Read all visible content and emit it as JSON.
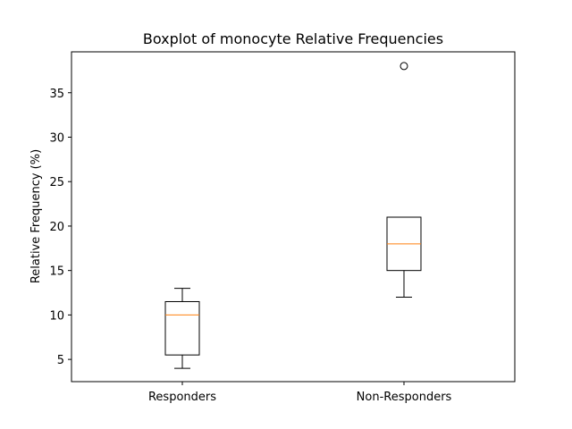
{
  "chart_data": {
    "type": "boxplot",
    "title": "Boxplot of monocyte Relative Frequencies",
    "xlabel": "",
    "ylabel": "Relative Frequency (%)",
    "categories": [
      "Responders",
      "Non-Responders"
    ],
    "boxes": [
      {
        "category": "Responders",
        "whisker_low": 4,
        "q1": 5.5,
        "median": 10,
        "q3": 11.5,
        "whisker_high": 13,
        "outliers": []
      },
      {
        "category": "Non-Responders",
        "whisker_low": 12,
        "q1": 15,
        "median": 18,
        "q3": 21,
        "whisker_high": 21,
        "outliers": [
          38
        ]
      }
    ],
    "ylim": [
      2.5,
      39.6
    ],
    "yticks": [
      5,
      10,
      15,
      20,
      25,
      30,
      35
    ],
    "grid": false,
    "legend": "none",
    "colors": {
      "box": "#000000",
      "median": "#ff7f0e",
      "outlier": "#000000"
    }
  }
}
